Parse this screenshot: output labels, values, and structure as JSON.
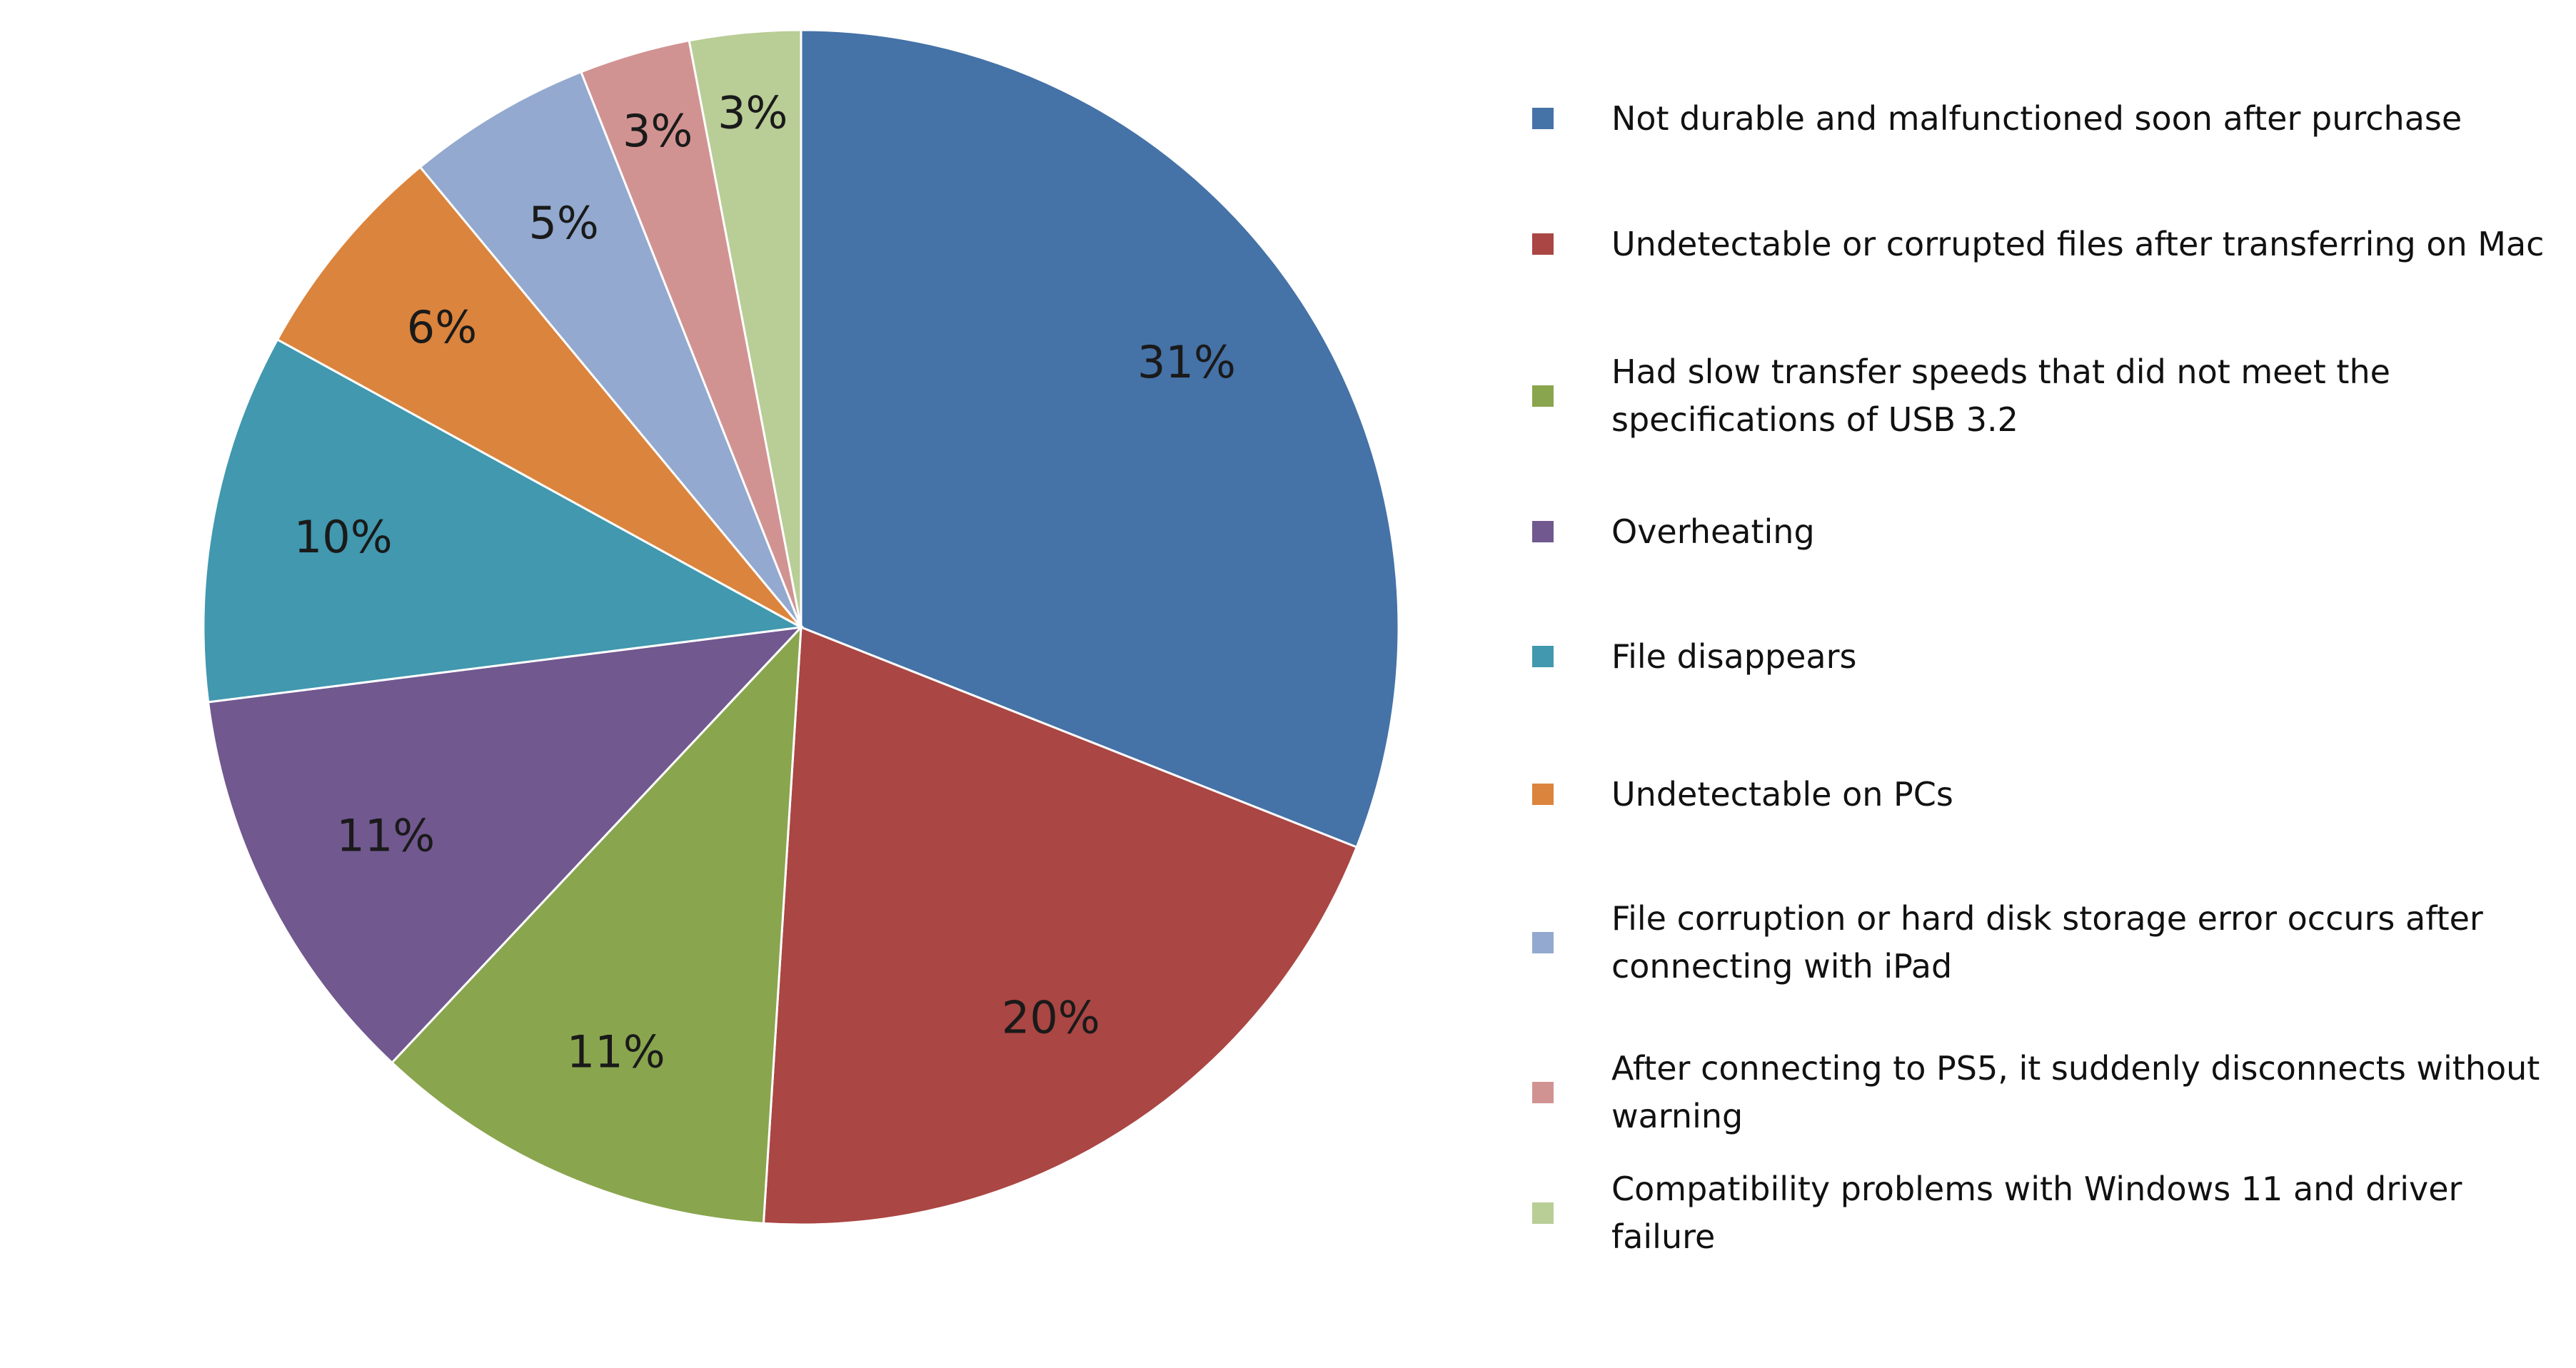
{
  "chart_data": {
    "type": "pie",
    "categories": [
      "Not durable and malfunctioned soon after purchase",
      "Undetectable or corrupted files after transferring on Mac",
      "Had slow transfer speeds that did not meet the specifications of USB 3.2",
      "Overheating",
      "File disappears",
      "Undetectable on PCs",
      "File corruption or hard disk storage error occurs after connecting with iPad",
      "After connecting to PS5, it suddenly disconnects without warning",
      "Compatibility problems with Windows 11 and driver failure"
    ],
    "values": [
      31,
      20,
      11,
      11,
      10,
      6,
      5,
      3,
      3
    ],
    "value_labels": [
      "31%",
      "20%",
      "11%",
      "11%",
      "10%",
      "6%",
      "5%",
      "3%",
      "3%"
    ],
    "colors": [
      "#4572a7",
      "#aa4643",
      "#89a54e",
      "#71588f",
      "#4198af",
      "#db843d",
      "#93a9cf",
      "#d19392",
      "#b9cd96"
    ],
    "legend": "right"
  }
}
